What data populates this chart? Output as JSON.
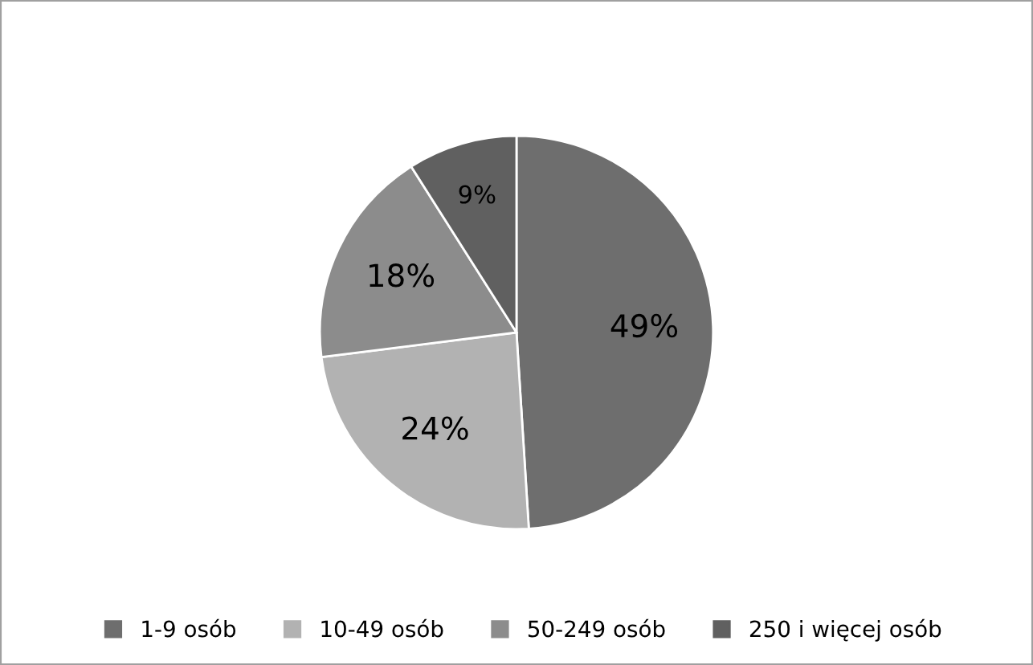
{
  "chart_data": {
    "type": "pie",
    "categories": [
      "1-9 osób",
      "10-49 osób",
      "50-249 osób",
      "250 i więcej osób"
    ],
    "values": [
      49,
      24,
      18,
      9
    ],
    "colors": [
      "#6e6e6e",
      "#b2b2b2",
      "#8c8c8c",
      "#606060"
    ],
    "data_labels": true,
    "value_labels": [
      "49%",
      "24%",
      "18%",
      "9%"
    ],
    "legend": "bottom"
  }
}
